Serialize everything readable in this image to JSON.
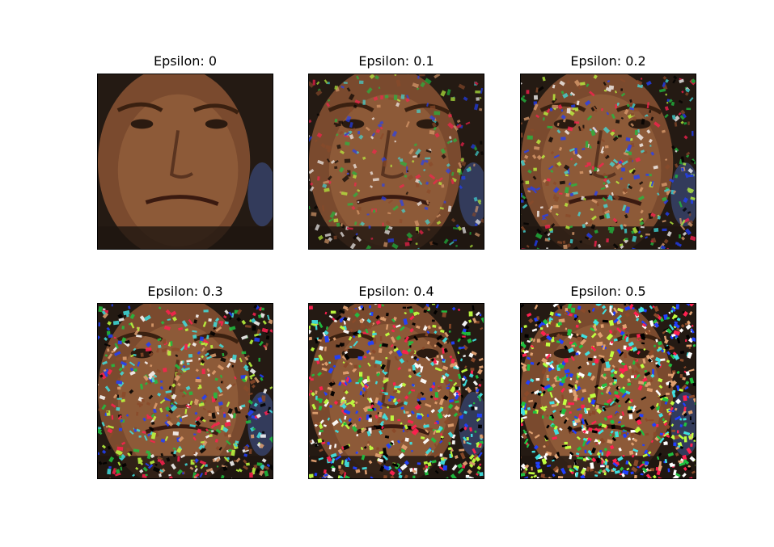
{
  "figure": {
    "panels": [
      {
        "title": "Epsilon: 0",
        "epsilon": 0
      },
      {
        "title": "Epsilon: 0.1",
        "epsilon": 0.1
      },
      {
        "title": "Epsilon: 0.2",
        "epsilon": 0.2
      },
      {
        "title": "Epsilon: 0.3",
        "epsilon": 0.3
      },
      {
        "title": "Epsilon: 0.4",
        "epsilon": 0.4
      },
      {
        "title": "Epsilon: 0.5",
        "epsilon": 0.5
      }
    ]
  },
  "colors": {
    "background": "#ffffff",
    "skin": "#8a5a38",
    "dark_bg": "#2a2018",
    "noise_palette": [
      "#000000",
      "#e0a070",
      "#ff2050",
      "#20c040",
      "#2040ff",
      "#c0ff40",
      "#8a4a2a",
      "#40e0e0",
      "#ffffff"
    ]
  }
}
